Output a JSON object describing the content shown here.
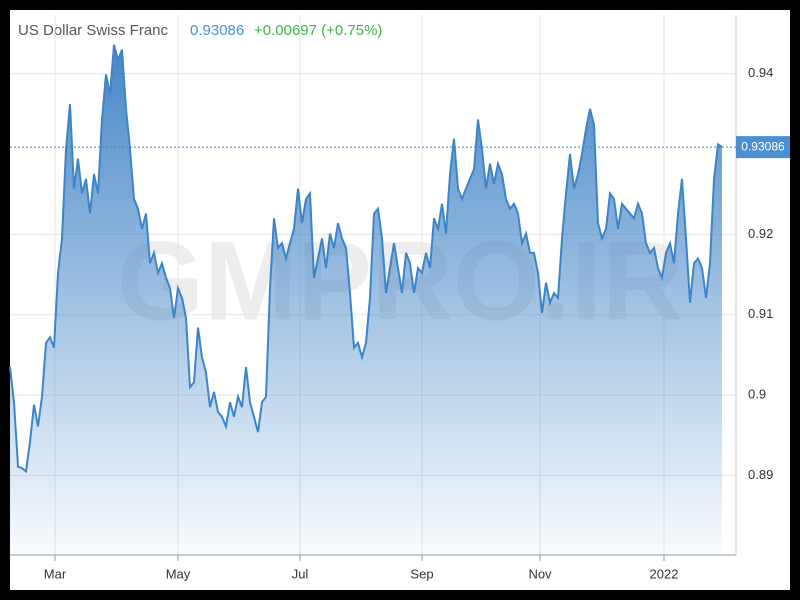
{
  "chart_data": {
    "type": "area",
    "title": "US Dollar Swiss Franc",
    "last_value": 0.93086,
    "change": "+0.00697 (+0.75%)",
    "watermark": "GMPRO.IR",
    "color": "#3d85c6",
    "values": [
      0.9035,
      0.8991,
      0.8911,
      0.8909,
      0.8905,
      0.8942,
      0.8988,
      0.8961,
      0.8998,
      0.9065,
      0.9072,
      0.9059,
      0.9152,
      0.9195,
      0.9306,
      0.9362,
      0.9257,
      0.9294,
      0.9251,
      0.9269,
      0.9226,
      0.9275,
      0.9251,
      0.9343,
      0.9399,
      0.9374,
      0.9436,
      0.9417,
      0.943,
      0.9356,
      0.9306,
      0.9244,
      0.9232,
      0.9207,
      0.9226,
      0.9164,
      0.9177,
      0.9152,
      0.9164,
      0.9146,
      0.9133,
      0.9096,
      0.9133,
      0.9121,
      0.9096,
      0.901,
      0.9016,
      0.9084,
      0.9047,
      0.9028,
      0.8985,
      0.9004,
      0.8979,
      0.8973,
      0.8961,
      0.8991,
      0.8973,
      0.8998,
      0.8985,
      0.9035,
      0.8991,
      0.8973,
      0.8954,
      0.8991,
      0.8998,
      0.9133,
      0.922,
      0.9183,
      0.9189,
      0.917,
      0.9189,
      0.9207,
      0.9257,
      0.9214,
      0.9244,
      0.9251,
      0.9146,
      0.917,
      0.9195,
      0.9158,
      0.9201,
      0.9183,
      0.9214,
      0.9195,
      0.9183,
      0.9127,
      0.9059,
      0.9065,
      0.9047,
      0.9065,
      0.9121,
      0.9226,
      0.9232,
      0.9195,
      0.9127,
      0.9158,
      0.9189,
      0.9158,
      0.9127,
      0.9177,
      0.9164,
      0.9127,
      0.9158,
      0.9152,
      0.9177,
      0.9158,
      0.922,
      0.9207,
      0.9238,
      0.9201,
      0.9275,
      0.9319,
      0.9257,
      0.9244,
      0.9257,
      0.9269,
      0.9281,
      0.9343,
      0.9306,
      0.9257,
      0.9288,
      0.9263,
      0.9288,
      0.9275,
      0.9244,
      0.9232,
      0.9238,
      0.9226,
      0.9189,
      0.9201,
      0.9177,
      0.9177,
      0.9152,
      0.9102,
      0.914,
      0.9115,
      0.9127,
      0.9121,
      0.9195,
      0.9251,
      0.93,
      0.9257,
      0.9275,
      0.93,
      0.9331,
      0.9356,
      0.9337,
      0.9214,
      0.9195,
      0.9207,
      0.9251,
      0.9244,
      0.9207,
      0.9238,
      0.9232,
      0.9226,
      0.922,
      0.9238,
      0.9226,
      0.9189,
      0.9177,
      0.9183,
      0.9158,
      0.9146,
      0.9177,
      0.9189,
      0.9164,
      0.9226,
      0.9269,
      0.9195,
      0.9115,
      0.9164,
      0.917,
      0.9158,
      0.9121,
      0.9164,
      0.9269,
      0.9312,
      0.93086
    ],
    "xlim": [
      0,
      178
    ],
    "xticks": [
      {
        "value": 11.25,
        "label": "Mar"
      },
      {
        "value": 42,
        "label": "May"
      },
      {
        "value": 72.5,
        "label": "Jul"
      },
      {
        "value": 103,
        "label": "Sep"
      },
      {
        "value": 132.5,
        "label": "Nov"
      },
      {
        "value": 163.5,
        "label": "2022"
      }
    ],
    "ylim": [
      0.8801,
      0.9473
    ],
    "yticks": [
      0.89,
      0.9,
      0.91,
      0.92,
      0.94
    ],
    "grid": true
  }
}
